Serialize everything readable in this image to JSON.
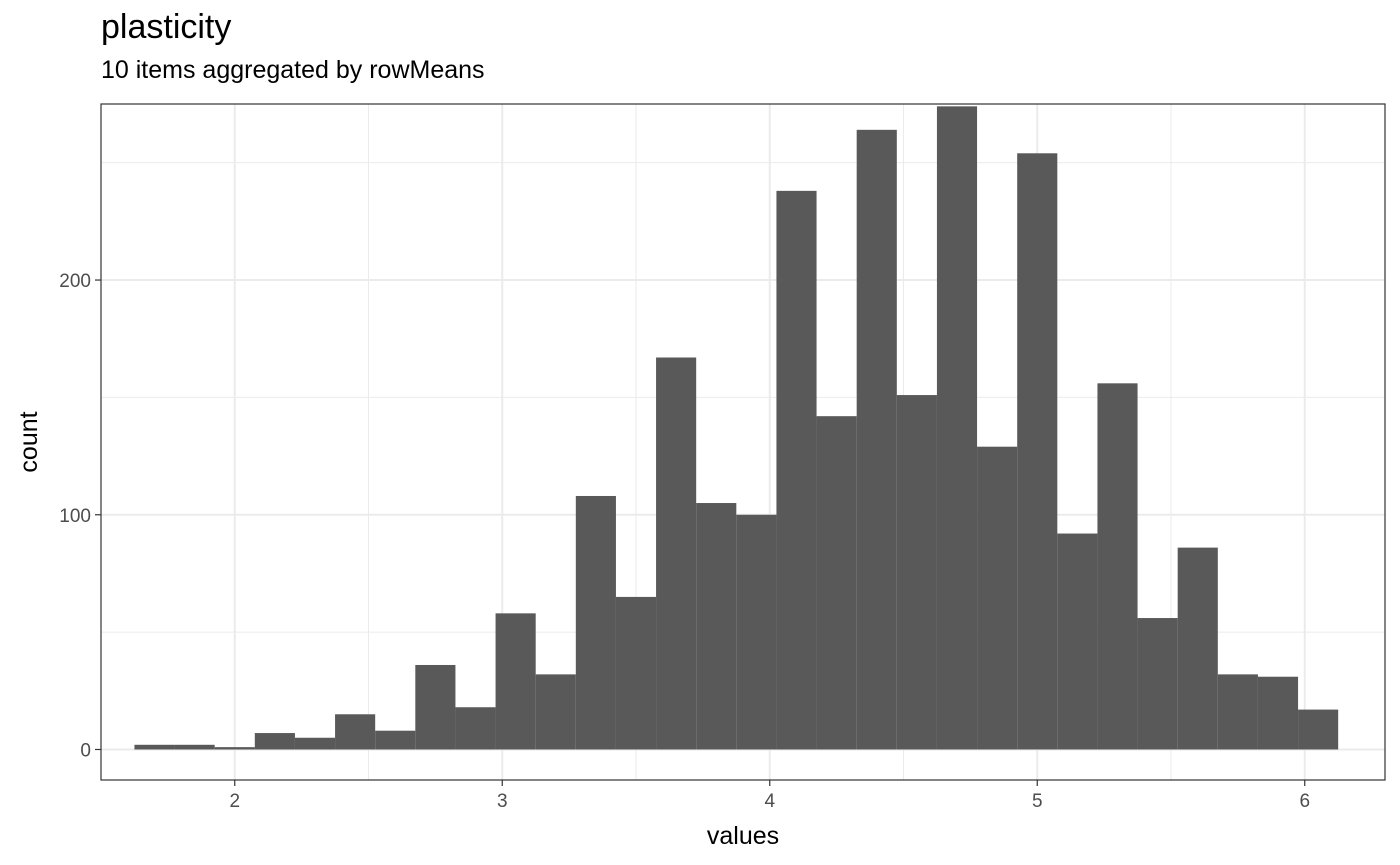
{
  "chart_data": {
    "type": "bar",
    "title": "plasticity",
    "subtitle": "10 items aggregated by rowMeans",
    "xlabel": "values",
    "ylabel": "count",
    "xlim": [
      1.5,
      6.3
    ],
    "ylim": [
      -13,
      275
    ],
    "x_ticks": [
      2,
      3,
      4,
      5,
      6
    ],
    "y_ticks": [
      0,
      100,
      200
    ],
    "bin_width": 0.15,
    "bins": [
      {
        "x": 1.7,
        "count": 2
      },
      {
        "x": 1.85,
        "count": 2
      },
      {
        "x": 2.0,
        "count": 1
      },
      {
        "x": 2.15,
        "count": 7
      },
      {
        "x": 2.3,
        "count": 5
      },
      {
        "x": 2.45,
        "count": 15
      },
      {
        "x": 2.6,
        "count": 8
      },
      {
        "x": 2.75,
        "count": 36
      },
      {
        "x": 2.9,
        "count": 18
      },
      {
        "x": 3.05,
        "count": 58
      },
      {
        "x": 3.2,
        "count": 32
      },
      {
        "x": 3.35,
        "count": 108
      },
      {
        "x": 3.5,
        "count": 65
      },
      {
        "x": 3.65,
        "count": 167
      },
      {
        "x": 3.8,
        "count": 105
      },
      {
        "x": 3.95,
        "count": 100
      },
      {
        "x": 4.1,
        "count": 238
      },
      {
        "x": 4.25,
        "count": 142
      },
      {
        "x": 4.4,
        "count": 264
      },
      {
        "x": 4.55,
        "count": 151
      },
      {
        "x": 4.7,
        "count": 274
      },
      {
        "x": 4.85,
        "count": 129
      },
      {
        "x": 5.0,
        "count": 254
      },
      {
        "x": 5.15,
        "count": 92
      },
      {
        "x": 5.3,
        "count": 156
      },
      {
        "x": 5.45,
        "count": 56
      },
      {
        "x": 5.6,
        "count": 86
      },
      {
        "x": 5.75,
        "count": 32
      },
      {
        "x": 5.9,
        "count": 31
      },
      {
        "x": 6.05,
        "count": 17
      }
    ],
    "bar_color": "#595959",
    "grid": true
  }
}
